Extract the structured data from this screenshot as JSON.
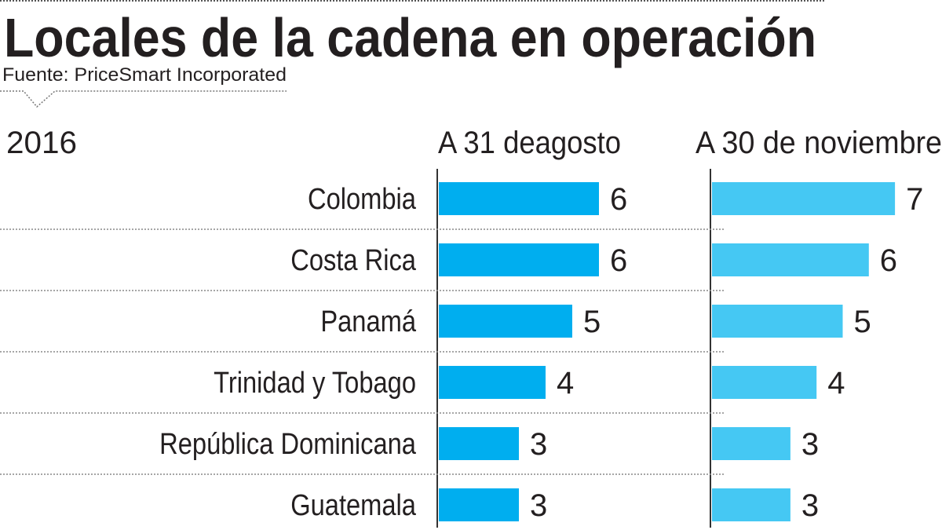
{
  "chart_data": {
    "type": "bar",
    "orientation": "horizontal",
    "title": "Locales de la cadena en operación",
    "subtitle": "Fuente: PriceSmart Incorporated",
    "year_label": "2016",
    "categories": [
      "Colombia",
      "Costa Rica",
      "Panamá",
      "Trinidad y Tobago",
      "República Dominicana",
      "Guatemala"
    ],
    "series": [
      {
        "name": "A 31 deagosto",
        "values": [
          6,
          6,
          5,
          4,
          3,
          3
        ],
        "color": "#00aeef"
      },
      {
        "name": "A 30 de noviembre",
        "values": [
          7,
          6,
          5,
          4,
          3,
          3
        ],
        "color": "#45c8f3"
      }
    ],
    "xlim": [
      0,
      7
    ],
    "grid": false,
    "legend": "none"
  }
}
